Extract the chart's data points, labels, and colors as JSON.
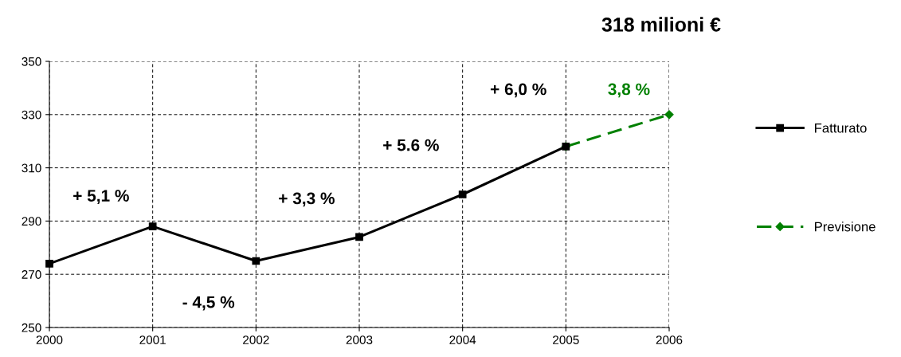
{
  "chart_data": {
    "type": "line",
    "title": "318 milioni €",
    "xlim": [
      2000,
      2006
    ],
    "xticks": [
      2000,
      2001,
      2002,
      2003,
      2004,
      2005,
      2006
    ],
    "ylim": [
      250,
      350
    ],
    "yticks": [
      250,
      270,
      290,
      310,
      330,
      350
    ],
    "grid": true,
    "legend": "right",
    "series": [
      {
        "name": "Fatturato",
        "color": "#000000",
        "marker": "square",
        "line_style": "solid",
        "x": [
          2000,
          2001,
          2002,
          2003,
          2004,
          2005
        ],
        "values": [
          274,
          288,
          275,
          284,
          300,
          318
        ]
      },
      {
        "name": "Previsione",
        "color": "#008000",
        "marker": "diamond",
        "line_style": "dashed",
        "x": [
          2005,
          2006
        ],
        "values": [
          318,
          330
        ]
      }
    ],
    "annotations": [
      "+ 5,1 %",
      "- 4,5 %",
      "+ 3,3 %",
      "+ 5.6 %",
      "+ 6,0 %",
      "3,8 %"
    ]
  }
}
